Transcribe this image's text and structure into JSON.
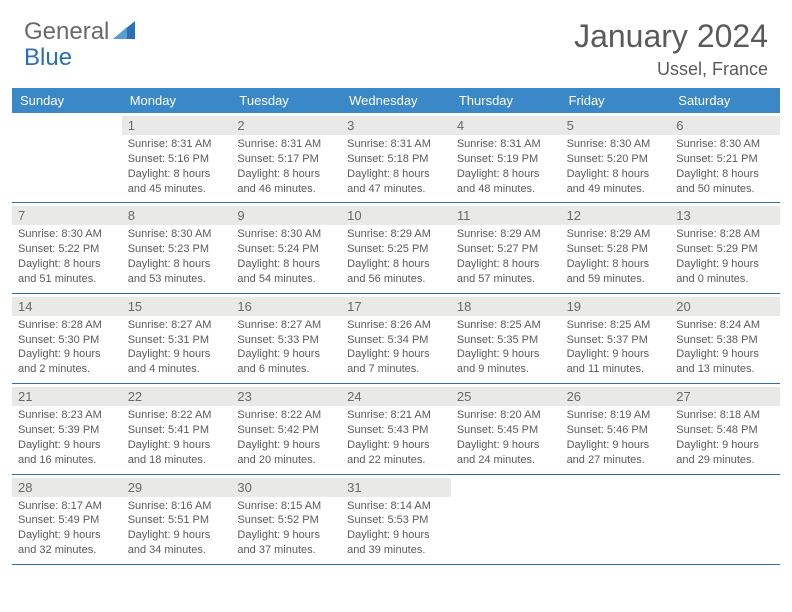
{
  "logo": {
    "part1": "General",
    "part2": "Blue"
  },
  "title": "January 2024",
  "location": "Ussel, France",
  "colors": {
    "header_bg": "#3b88c8",
    "daynum_bg": "#e9e9e7",
    "border": "#2d6fb3",
    "text": "#5a5a5a",
    "logo_gray": "#6a6a6a",
    "logo_blue": "#2d6fb3"
  },
  "daysOfWeek": [
    "Sunday",
    "Monday",
    "Tuesday",
    "Wednesday",
    "Thursday",
    "Friday",
    "Saturday"
  ],
  "weeks": [
    [
      {
        "n": "",
        "sr": "",
        "ss": "",
        "dl1": "",
        "dl2": ""
      },
      {
        "n": "1",
        "sr": "Sunrise: 8:31 AM",
        "ss": "Sunset: 5:16 PM",
        "dl1": "Daylight: 8 hours",
        "dl2": "and 45 minutes."
      },
      {
        "n": "2",
        "sr": "Sunrise: 8:31 AM",
        "ss": "Sunset: 5:17 PM",
        "dl1": "Daylight: 8 hours",
        "dl2": "and 46 minutes."
      },
      {
        "n": "3",
        "sr": "Sunrise: 8:31 AM",
        "ss": "Sunset: 5:18 PM",
        "dl1": "Daylight: 8 hours",
        "dl2": "and 47 minutes."
      },
      {
        "n": "4",
        "sr": "Sunrise: 8:31 AM",
        "ss": "Sunset: 5:19 PM",
        "dl1": "Daylight: 8 hours",
        "dl2": "and 48 minutes."
      },
      {
        "n": "5",
        "sr": "Sunrise: 8:30 AM",
        "ss": "Sunset: 5:20 PM",
        "dl1": "Daylight: 8 hours",
        "dl2": "and 49 minutes."
      },
      {
        "n": "6",
        "sr": "Sunrise: 8:30 AM",
        "ss": "Sunset: 5:21 PM",
        "dl1": "Daylight: 8 hours",
        "dl2": "and 50 minutes."
      }
    ],
    [
      {
        "n": "7",
        "sr": "Sunrise: 8:30 AM",
        "ss": "Sunset: 5:22 PM",
        "dl1": "Daylight: 8 hours",
        "dl2": "and 51 minutes."
      },
      {
        "n": "8",
        "sr": "Sunrise: 8:30 AM",
        "ss": "Sunset: 5:23 PM",
        "dl1": "Daylight: 8 hours",
        "dl2": "and 53 minutes."
      },
      {
        "n": "9",
        "sr": "Sunrise: 8:30 AM",
        "ss": "Sunset: 5:24 PM",
        "dl1": "Daylight: 8 hours",
        "dl2": "and 54 minutes."
      },
      {
        "n": "10",
        "sr": "Sunrise: 8:29 AM",
        "ss": "Sunset: 5:25 PM",
        "dl1": "Daylight: 8 hours",
        "dl2": "and 56 minutes."
      },
      {
        "n": "11",
        "sr": "Sunrise: 8:29 AM",
        "ss": "Sunset: 5:27 PM",
        "dl1": "Daylight: 8 hours",
        "dl2": "and 57 minutes."
      },
      {
        "n": "12",
        "sr": "Sunrise: 8:29 AM",
        "ss": "Sunset: 5:28 PM",
        "dl1": "Daylight: 8 hours",
        "dl2": "and 59 minutes."
      },
      {
        "n": "13",
        "sr": "Sunrise: 8:28 AM",
        "ss": "Sunset: 5:29 PM",
        "dl1": "Daylight: 9 hours",
        "dl2": "and 0 minutes."
      }
    ],
    [
      {
        "n": "14",
        "sr": "Sunrise: 8:28 AM",
        "ss": "Sunset: 5:30 PM",
        "dl1": "Daylight: 9 hours",
        "dl2": "and 2 minutes."
      },
      {
        "n": "15",
        "sr": "Sunrise: 8:27 AM",
        "ss": "Sunset: 5:31 PM",
        "dl1": "Daylight: 9 hours",
        "dl2": "and 4 minutes."
      },
      {
        "n": "16",
        "sr": "Sunrise: 8:27 AM",
        "ss": "Sunset: 5:33 PM",
        "dl1": "Daylight: 9 hours",
        "dl2": "and 6 minutes."
      },
      {
        "n": "17",
        "sr": "Sunrise: 8:26 AM",
        "ss": "Sunset: 5:34 PM",
        "dl1": "Daylight: 9 hours",
        "dl2": "and 7 minutes."
      },
      {
        "n": "18",
        "sr": "Sunrise: 8:25 AM",
        "ss": "Sunset: 5:35 PM",
        "dl1": "Daylight: 9 hours",
        "dl2": "and 9 minutes."
      },
      {
        "n": "19",
        "sr": "Sunrise: 8:25 AM",
        "ss": "Sunset: 5:37 PM",
        "dl1": "Daylight: 9 hours",
        "dl2": "and 11 minutes."
      },
      {
        "n": "20",
        "sr": "Sunrise: 8:24 AM",
        "ss": "Sunset: 5:38 PM",
        "dl1": "Daylight: 9 hours",
        "dl2": "and 13 minutes."
      }
    ],
    [
      {
        "n": "21",
        "sr": "Sunrise: 8:23 AM",
        "ss": "Sunset: 5:39 PM",
        "dl1": "Daylight: 9 hours",
        "dl2": "and 16 minutes."
      },
      {
        "n": "22",
        "sr": "Sunrise: 8:22 AM",
        "ss": "Sunset: 5:41 PM",
        "dl1": "Daylight: 9 hours",
        "dl2": "and 18 minutes."
      },
      {
        "n": "23",
        "sr": "Sunrise: 8:22 AM",
        "ss": "Sunset: 5:42 PM",
        "dl1": "Daylight: 9 hours",
        "dl2": "and 20 minutes."
      },
      {
        "n": "24",
        "sr": "Sunrise: 8:21 AM",
        "ss": "Sunset: 5:43 PM",
        "dl1": "Daylight: 9 hours",
        "dl2": "and 22 minutes."
      },
      {
        "n": "25",
        "sr": "Sunrise: 8:20 AM",
        "ss": "Sunset: 5:45 PM",
        "dl1": "Daylight: 9 hours",
        "dl2": "and 24 minutes."
      },
      {
        "n": "26",
        "sr": "Sunrise: 8:19 AM",
        "ss": "Sunset: 5:46 PM",
        "dl1": "Daylight: 9 hours",
        "dl2": "and 27 minutes."
      },
      {
        "n": "27",
        "sr": "Sunrise: 8:18 AM",
        "ss": "Sunset: 5:48 PM",
        "dl1": "Daylight: 9 hours",
        "dl2": "and 29 minutes."
      }
    ],
    [
      {
        "n": "28",
        "sr": "Sunrise: 8:17 AM",
        "ss": "Sunset: 5:49 PM",
        "dl1": "Daylight: 9 hours",
        "dl2": "and 32 minutes."
      },
      {
        "n": "29",
        "sr": "Sunrise: 8:16 AM",
        "ss": "Sunset: 5:51 PM",
        "dl1": "Daylight: 9 hours",
        "dl2": "and 34 minutes."
      },
      {
        "n": "30",
        "sr": "Sunrise: 8:15 AM",
        "ss": "Sunset: 5:52 PM",
        "dl1": "Daylight: 9 hours",
        "dl2": "and 37 minutes."
      },
      {
        "n": "31",
        "sr": "Sunrise: 8:14 AM",
        "ss": "Sunset: 5:53 PM",
        "dl1": "Daylight: 9 hours",
        "dl2": "and 39 minutes."
      },
      {
        "n": "",
        "sr": "",
        "ss": "",
        "dl1": "",
        "dl2": ""
      },
      {
        "n": "",
        "sr": "",
        "ss": "",
        "dl1": "",
        "dl2": ""
      },
      {
        "n": "",
        "sr": "",
        "ss": "",
        "dl1": "",
        "dl2": ""
      }
    ]
  ]
}
